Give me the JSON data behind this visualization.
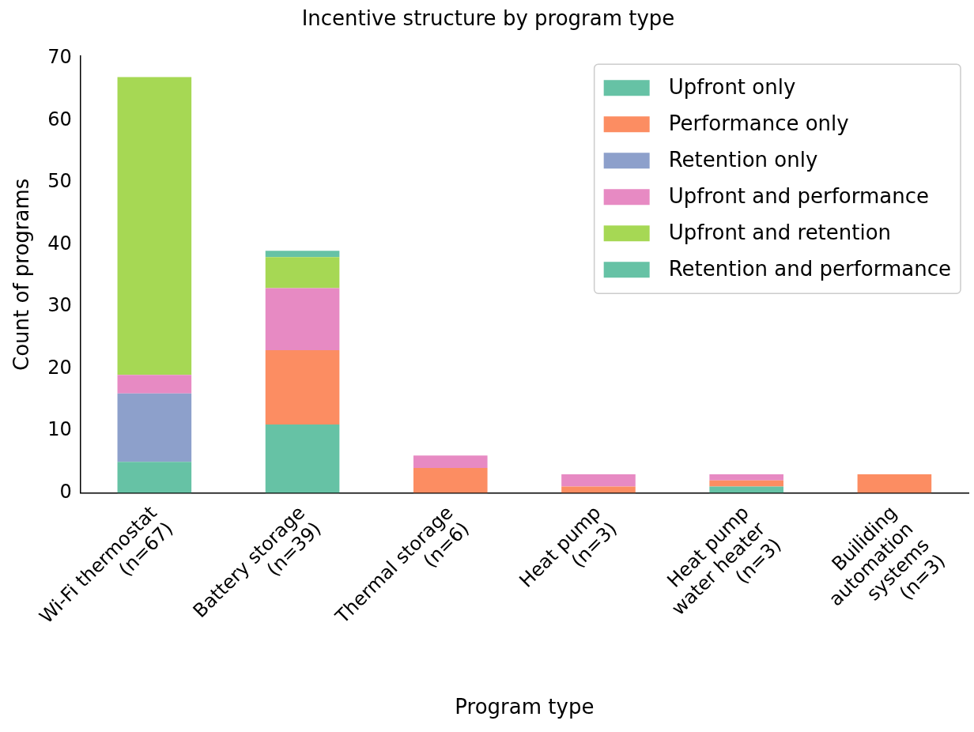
{
  "chart_data": {
    "type": "bar",
    "title": "Incentive structure by program type",
    "xlabel": "Program type",
    "ylabel": "Count of programs",
    "categories": [
      "Wi-Fi thermostat\n(n=67)",
      "Battery storage\n(n=39)",
      "Thermal storage\n(n=6)",
      "Heat pump\n(n=3)",
      "Heat pump\nwater heater\n(n=3)",
      "Builiding\nautomation\nsystems\n(n=3)"
    ],
    "stacked": true,
    "ylim": [
      0,
      70.35
    ],
    "yticks": [
      0,
      10,
      20,
      30,
      40,
      50,
      60,
      70
    ],
    "grid": false,
    "legend": "top right",
    "series": [
      {
        "name": "Upfront only",
        "color": "#66c2a5",
        "values": [
          5,
          11,
          0,
          0,
          1,
          0
        ]
      },
      {
        "name": "Performance only",
        "color": "#fc8d62",
        "values": [
          0,
          12,
          4,
          1,
          1,
          3
        ]
      },
      {
        "name": "Retention only",
        "color": "#8da0cb",
        "values": [
          11,
          0,
          0,
          0,
          0,
          0
        ]
      },
      {
        "name": "Upfront and performance",
        "color": "#e78ac3",
        "values": [
          3,
          10,
          2,
          2,
          1,
          0
        ]
      },
      {
        "name": "Upfront and retention",
        "color": "#a6d854",
        "values": [
          48,
          5,
          0,
          0,
          0,
          0
        ]
      },
      {
        "name": "Retention and performance",
        "color": "#66c2a5",
        "values": [
          0,
          1,
          0,
          0,
          0,
          0
        ]
      }
    ]
  }
}
